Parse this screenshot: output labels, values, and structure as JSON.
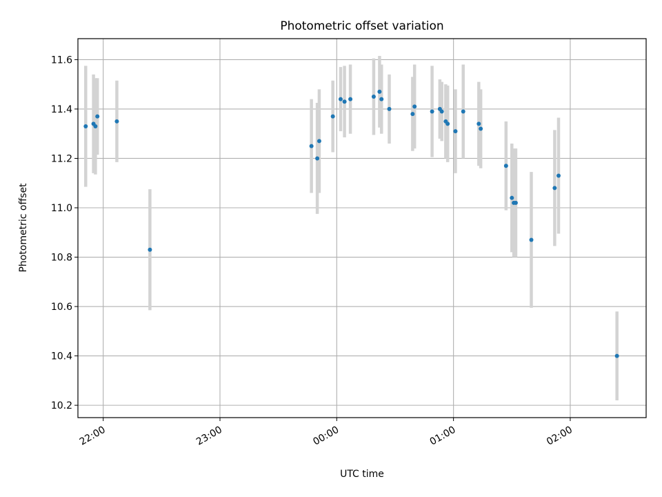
{
  "chart_data": {
    "type": "scatter",
    "title": "Photometric offset variation",
    "xlabel": "UTC time",
    "ylabel": "Photometric offset",
    "x_tick_labels": [
      "22:00",
      "23:00",
      "00:00",
      "01:00",
      "02:00"
    ],
    "x_ticks": [
      "22:00",
      "23:00",
      "00:00",
      "01:00",
      "02:00"
    ],
    "y_ticks": [
      10.2,
      10.4,
      10.6,
      10.8,
      11.0,
      11.2,
      11.4,
      11.6
    ],
    "y_tick_labels": [
      "10.2",
      "10.4",
      "10.6",
      "10.8",
      "11.0",
      "11.2",
      "11.4",
      "11.6"
    ],
    "xlim": [
      "21:47",
      "02:39"
    ],
    "ylim": [
      10.15,
      11.685
    ],
    "grid": true,
    "legend": null,
    "colors": {
      "point": "#1f77b4",
      "errorbar": "#d3d3d3",
      "grid": "#b0b0b0"
    },
    "series": [
      {
        "points": [
          {
            "x": "21:51",
            "y": 11.33,
            "err": 0.245
          },
          {
            "x": "21:55",
            "y": 11.34,
            "err": 0.2
          },
          {
            "x": "21:56",
            "y": 11.33,
            "err": 0.195
          },
          {
            "x": "21:57",
            "y": 11.37,
            "err": 0.155
          },
          {
            "x": "22:07",
            "y": 11.35,
            "err": 0.165
          },
          {
            "x": "22:24",
            "y": 10.83,
            "err": 0.245
          },
          {
            "x": "23:47",
            "y": 11.25,
            "err": 0.19
          },
          {
            "x": "23:50",
            "y": 11.2,
            "err": 0.225
          },
          {
            "x": "23:51",
            "y": 11.27,
            "err": 0.21
          },
          {
            "x": "23:58",
            "y": 11.37,
            "err": 0.145
          },
          {
            "x": "00:02",
            "y": 11.44,
            "err": 0.13
          },
          {
            "x": "00:04",
            "y": 11.43,
            "err": 0.145
          },
          {
            "x": "00:07",
            "y": 11.44,
            "err": 0.14
          },
          {
            "x": "00:19",
            "y": 11.45,
            "err": 0.155
          },
          {
            "x": "00:22",
            "y": 11.47,
            "err": 0.145
          },
          {
            "x": "00:23",
            "y": 11.44,
            "err": 0.14
          },
          {
            "x": "00:27",
            "y": 11.4,
            "err": 0.14
          },
          {
            "x": "00:39",
            "y": 11.38,
            "err": 0.15
          },
          {
            "x": "00:40",
            "y": 11.41,
            "err": 0.17
          },
          {
            "x": "00:49",
            "y": 11.39,
            "err": 0.185
          },
          {
            "x": "00:53",
            "y": 11.4,
            "err": 0.12
          },
          {
            "x": "00:54",
            "y": 11.39,
            "err": 0.12
          },
          {
            "x": "00:56",
            "y": 11.35,
            "err": 0.15
          },
          {
            "x": "00:57",
            "y": 11.34,
            "err": 0.155
          },
          {
            "x": "01:01",
            "y": 11.31,
            "err": 0.17
          },
          {
            "x": "01:05",
            "y": 11.39,
            "err": 0.19
          },
          {
            "x": "01:13",
            "y": 11.34,
            "err": 0.17
          },
          {
            "x": "01:14",
            "y": 11.32,
            "err": 0.16
          },
          {
            "x": "01:27",
            "y": 11.17,
            "err": 0.18
          },
          {
            "x": "01:30",
            "y": 11.04,
            "err": 0.22
          },
          {
            "x": "01:31",
            "y": 11.02,
            "err": 0.22
          },
          {
            "x": "01:32",
            "y": 11.02,
            "err": 0.22
          },
          {
            "x": "01:40",
            "y": 10.87,
            "err": 0.275
          },
          {
            "x": "01:52",
            "y": 11.08,
            "err": 0.235
          },
          {
            "x": "01:54",
            "y": 11.13,
            "err": 0.235
          },
          {
            "x": "02:24",
            "y": 10.4,
            "err": 0.18
          }
        ]
      }
    ]
  }
}
